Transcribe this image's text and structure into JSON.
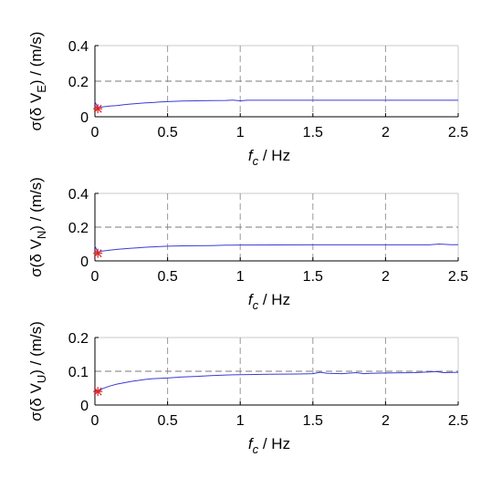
{
  "chart_data": [
    {
      "type": "line",
      "xlabel": {
        "var": "f",
        "sub": "c",
        "unit": "  / Hz"
      },
      "ylabel": {
        "pre": "σ(δ V",
        "sub": "E",
        "post": ") / (m/s)"
      },
      "xlim": [
        0,
        2.5
      ],
      "ylim": [
        0,
        0.4
      ],
      "xticks": [
        "0",
        "0.5",
        "1",
        "1.5",
        "2",
        "2.5"
      ],
      "yticks": [
        "0",
        "0.2",
        "0.4"
      ],
      "grid": true,
      "threshold": 0.2,
      "colors": {
        "series": "#3b3bd6",
        "threshold": "#7a7a7a",
        "marker": "#e02020"
      },
      "series": [
        {
          "x": [
            0.0,
            0.02,
            0.05,
            0.1,
            0.15,
            0.2,
            0.25,
            0.3,
            0.35,
            0.4,
            0.45,
            0.5,
            0.6,
            0.7,
            0.8,
            0.9,
            0.95,
            1.0,
            1.05,
            1.1,
            2.5
          ],
          "values": [
            0.085,
            0.05,
            0.055,
            0.06,
            0.063,
            0.068,
            0.072,
            0.075,
            0.078,
            0.08,
            0.083,
            0.085,
            0.088,
            0.09,
            0.091,
            0.092,
            0.094,
            0.09,
            0.093,
            0.093,
            0.093
          ]
        }
      ],
      "marker": {
        "x": 0.02,
        "y": 0.045,
        "symbol": "*"
      }
    },
    {
      "type": "line",
      "xlabel": {
        "var": "f",
        "sub": "c",
        "unit": "  / Hz"
      },
      "ylabel": {
        "pre": "σ(δ V",
        "sub": "N",
        "post": ") / (m/s)"
      },
      "xlim": [
        0,
        2.5
      ],
      "ylim": [
        0,
        0.4
      ],
      "xticks": [
        "0",
        "0.5",
        "1",
        "1.5",
        "2",
        "2.5"
      ],
      "yticks": [
        "0",
        "0.2",
        "0.4"
      ],
      "grid": true,
      "threshold": 0.2,
      "colors": {
        "series": "#3b3bd6",
        "threshold": "#7a7a7a",
        "marker": "#e02020"
      },
      "series": [
        {
          "x": [
            0.0,
            0.02,
            0.05,
            0.1,
            0.15,
            0.2,
            0.25,
            0.3,
            0.35,
            0.4,
            0.45,
            0.5,
            0.6,
            0.7,
            0.8,
            0.9,
            1.0,
            1.5,
            2.0,
            2.3,
            2.37,
            2.45,
            2.5
          ],
          "values": [
            0.09,
            0.05,
            0.058,
            0.063,
            0.068,
            0.072,
            0.075,
            0.078,
            0.081,
            0.083,
            0.085,
            0.087,
            0.089,
            0.09,
            0.091,
            0.093,
            0.094,
            0.095,
            0.095,
            0.095,
            0.1,
            0.096,
            0.096
          ]
        }
      ],
      "marker": {
        "x": 0.02,
        "y": 0.045,
        "symbol": "*"
      }
    },
    {
      "type": "line",
      "xlabel": {
        "var": "f",
        "sub": "c",
        "unit": "  / Hz"
      },
      "ylabel": {
        "pre": "σ(δ V",
        "sub": "U",
        "post": ") / (m/s)"
      },
      "xlim": [
        0,
        2.5
      ],
      "ylim": [
        0,
        0.2
      ],
      "xticks": [
        "0",
        "0.5",
        "1",
        "1.5",
        "2",
        "2.5"
      ],
      "yticks": [
        "0",
        "0.1",
        "0.2"
      ],
      "grid": true,
      "threshold": 0.1,
      "colors": {
        "series": "#3b3bd6",
        "threshold": "#7a7a7a",
        "marker": "#e02020"
      },
      "series": [
        {
          "x": [
            0.0,
            0.02,
            0.05,
            0.1,
            0.15,
            0.2,
            0.25,
            0.3,
            0.35,
            0.4,
            0.45,
            0.5,
            0.6,
            0.7,
            0.8,
            0.9,
            1.0,
            1.2,
            1.4,
            1.5,
            1.55,
            1.6,
            1.7,
            1.8,
            1.85,
            1.9,
            2.0,
            2.2,
            2.35,
            2.4,
            2.5
          ],
          "values": [
            0.045,
            0.038,
            0.048,
            0.056,
            0.062,
            0.066,
            0.07,
            0.073,
            0.076,
            0.078,
            0.079,
            0.08,
            0.083,
            0.085,
            0.087,
            0.089,
            0.09,
            0.091,
            0.092,
            0.093,
            0.097,
            0.094,
            0.093,
            0.096,
            0.093,
            0.094,
            0.095,
            0.096,
            0.099,
            0.096,
            0.097
          ]
        }
      ],
      "marker": {
        "x": 0.02,
        "y": 0.04,
        "symbol": "*"
      }
    }
  ]
}
